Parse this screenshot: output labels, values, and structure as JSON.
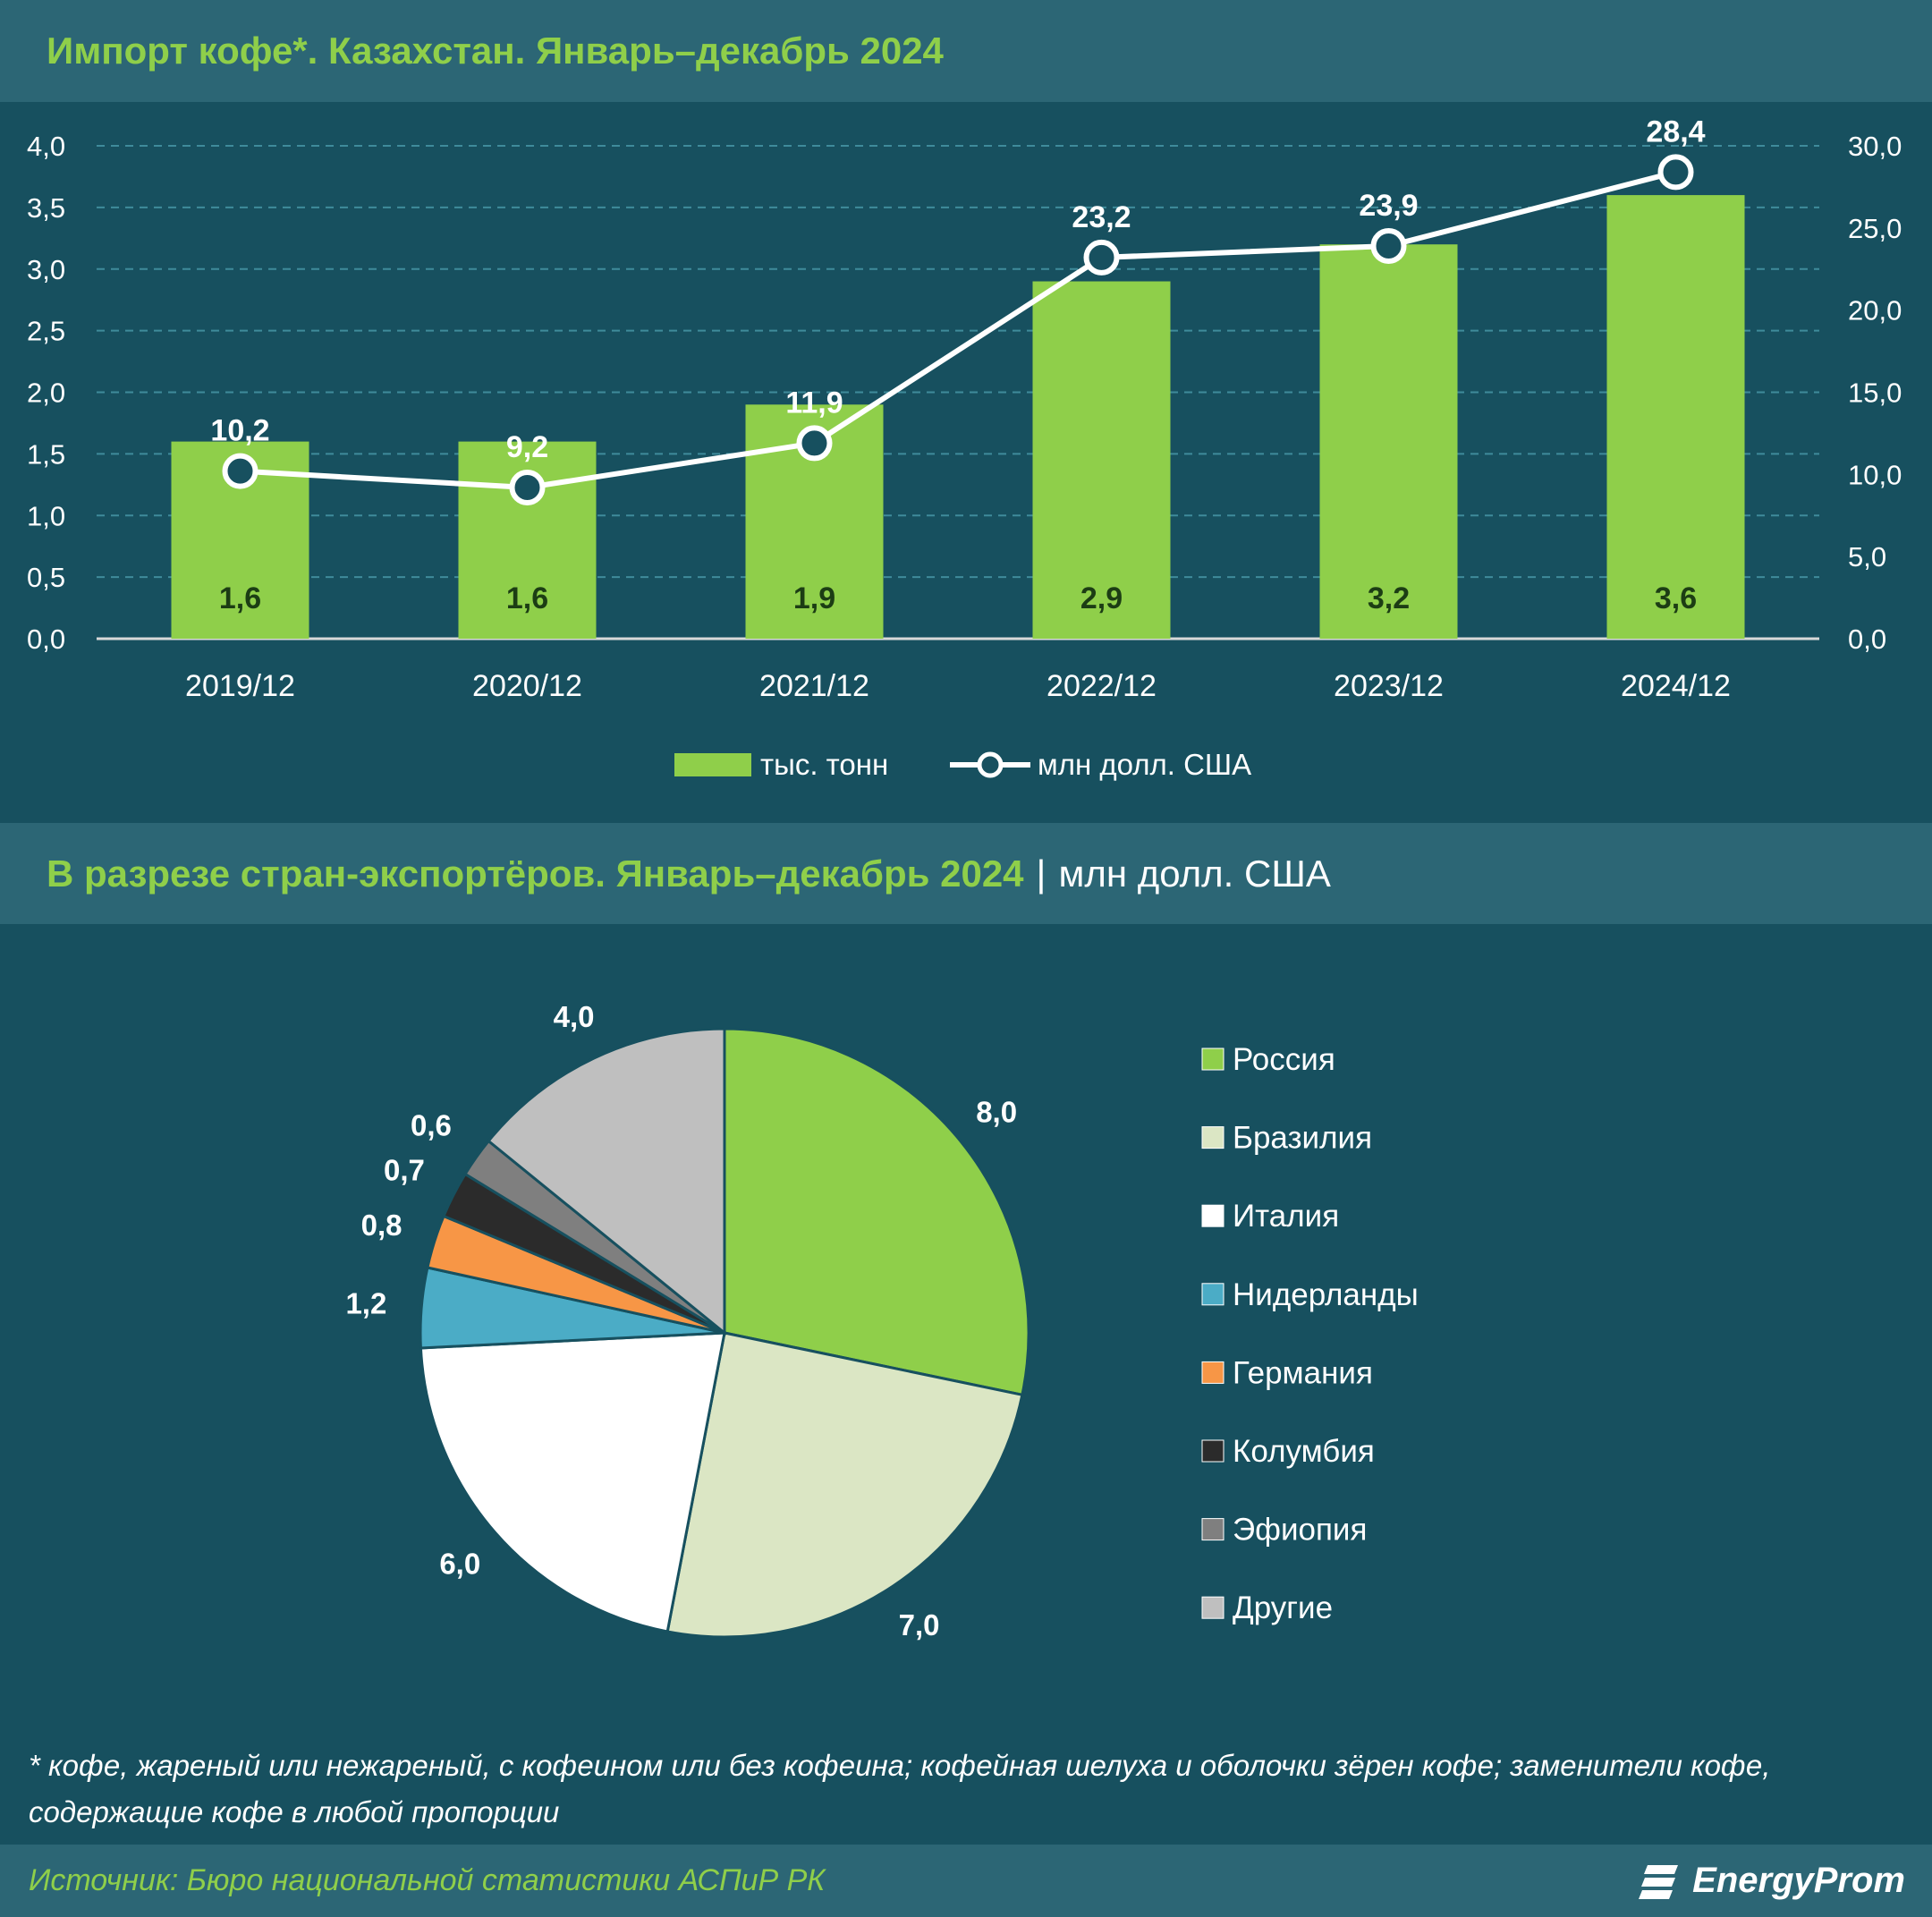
{
  "title": "Импорт кофе*. Казахстан. Январь–декабрь 2024",
  "subtitle": {
    "main": "В разрезе стран-экспортёров. Январь–декабрь 2024",
    "separator": "|",
    "unit": "млн долл. США"
  },
  "footnote": "* кофе, жареный или нежареный, с кофеином или без кофеина; кофейная шелуха и оболочки зёрен кофе; заменители кофе, содержащие кофе в любой пропорции",
  "source": "Источник: Бюро национальной статистики АСПиР РК",
  "brand": "EnergyProm",
  "chart_data": [
    {
      "type": "bar",
      "combo": "bar+line",
      "categories": [
        "2019/12",
        "2020/12",
        "2021/12",
        "2022/12",
        "2023/12",
        "2024/12"
      ],
      "series": [
        {
          "name": "тыс. тонн",
          "type": "bar",
          "axis": "left",
          "values": [
            1.6,
            1.6,
            1.9,
            2.9,
            3.2,
            3.6
          ],
          "labels": [
            "1,6",
            "1,6",
            "1,9",
            "2,9",
            "3,2",
            "3,6"
          ],
          "color": "#8fcf4a"
        },
        {
          "name": "млн долл. США",
          "type": "line",
          "axis": "right",
          "values": [
            10.2,
            9.2,
            11.9,
            23.2,
            23.9,
            28.4
          ],
          "labels": [
            "10,2",
            "9,2",
            "11,9",
            "23,2",
            "23,9",
            "28,4"
          ],
          "color": "#ffffff"
        }
      ],
      "y_left": {
        "lim": [
          0,
          4
        ],
        "ticks": [
          "0,0",
          "0,5",
          "1,0",
          "1,5",
          "2,0",
          "2,5",
          "3,0",
          "3,5",
          "4,0"
        ]
      },
      "y_right": {
        "lim": [
          0,
          30
        ],
        "ticks": [
          "0,0",
          "5,0",
          "10,0",
          "15,0",
          "20,0",
          "25,0",
          "30,0"
        ]
      },
      "grid": true,
      "legend": "bottom"
    },
    {
      "type": "pie",
      "slices": [
        {
          "label": "Россия",
          "value": 8.0,
          "text": "8,0",
          "color": "#8fcf4a"
        },
        {
          "label": "Бразилия",
          "value": 7.0,
          "text": "7,0",
          "color": "#dbe6c4"
        },
        {
          "label": "Италия",
          "value": 6.0,
          "text": "6,0",
          "color": "#ffffff"
        },
        {
          "label": "Нидерланды",
          "value": 1.2,
          "text": "1,2",
          "color": "#4bacc6"
        },
        {
          "label": "Германия",
          "value": 0.8,
          "text": "0,8",
          "color": "#f79646"
        },
        {
          "label": "Колумбия",
          "value": 0.7,
          "text": "0,7",
          "color": "#2b2b2b"
        },
        {
          "label": "Эфиопия",
          "value": 0.6,
          "text": "0,6",
          "color": "#7f7f7f"
        },
        {
          "label": "Другие",
          "value": 4.0,
          "text": "4,0",
          "color": "#bfbfbf"
        }
      ],
      "legend": "right"
    }
  ]
}
